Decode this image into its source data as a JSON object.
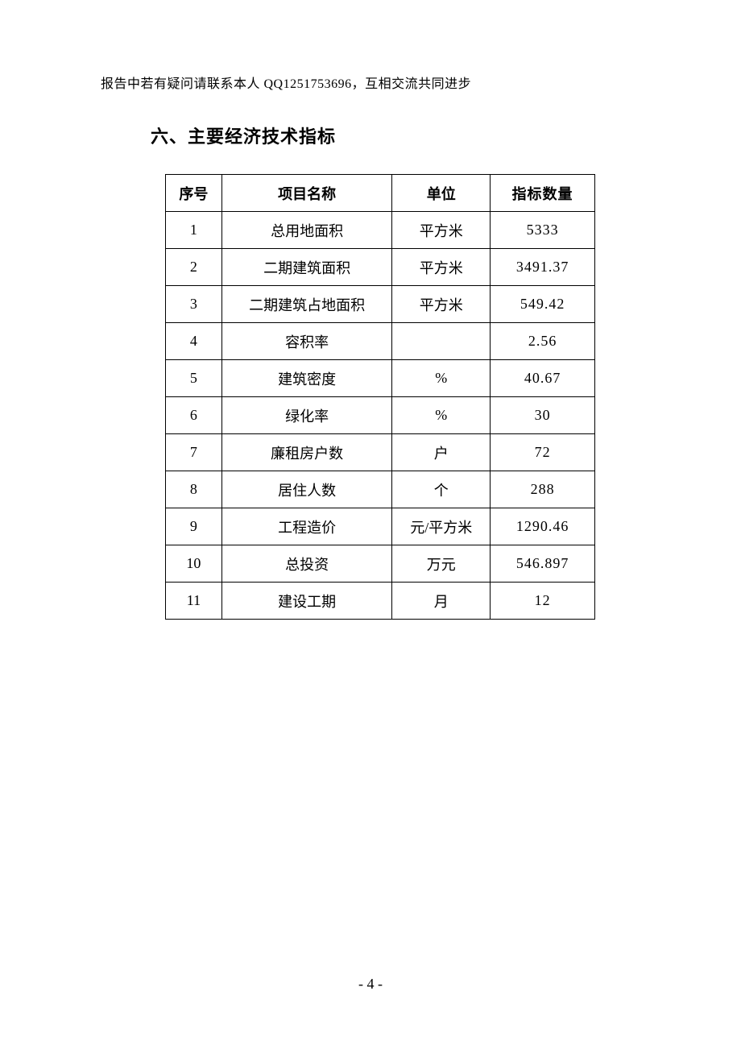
{
  "header_note": "报告中若有疑问请联系本人 QQ1251753696，互相交流共同进步",
  "section_title": "六、主要经济技术指标",
  "table": {
    "columns": [
      "序号",
      "项目名称",
      "单位",
      "指标数量"
    ],
    "rows": [
      [
        "1",
        "总用地面积",
        "平方米",
        "5333"
      ],
      [
        "2",
        "二期建筑面积",
        "平方米",
        "3491.37"
      ],
      [
        "3",
        "二期建筑占地面积",
        "平方米",
        "549.42"
      ],
      [
        "4",
        "容积率",
        "",
        "2.56"
      ],
      [
        "5",
        "建筑密度",
        "%",
        "40.67"
      ],
      [
        "6",
        "绿化率",
        "%",
        "30"
      ],
      [
        "7",
        "廉租房户数",
        "户",
        "72"
      ],
      [
        "8",
        "居住人数",
        "个",
        "288"
      ],
      [
        "9",
        "工程造价",
        "元/平方米",
        "1290.46"
      ],
      [
        "10",
        "总投资",
        "万元",
        "546.897"
      ],
      [
        "11",
        "建设工期",
        "月",
        "12"
      ]
    ]
  },
  "page_number": "- 4 -"
}
